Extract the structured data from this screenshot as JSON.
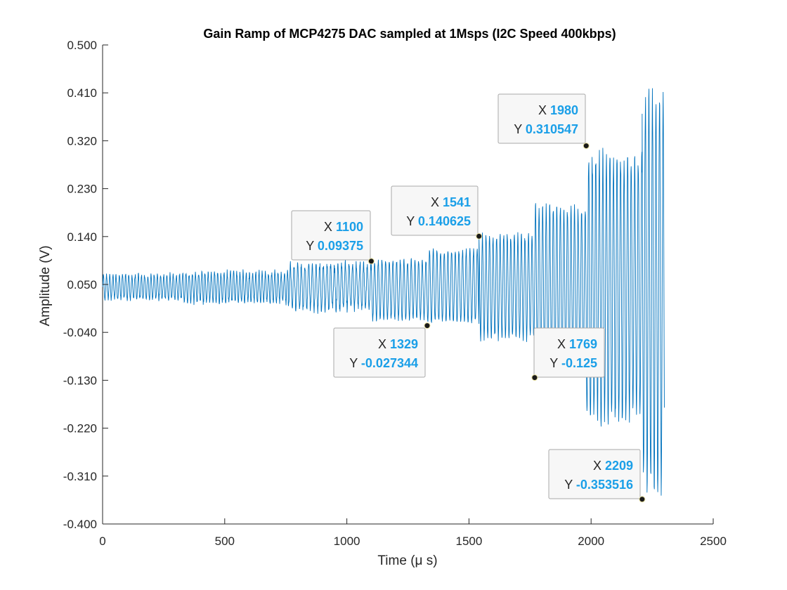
{
  "chart_data": {
    "type": "line",
    "title": "Gain Ramp of MCP4275 DAC sampled at 1Msps (I2C Speed 400kbps)",
    "xlabel": "Time (μ s)",
    "ylabel": "Amplitude (V)",
    "xlim": [
      0,
      2500
    ],
    "ylim": [
      -0.4,
      0.5
    ],
    "xticks": [
      "0",
      "500",
      "1000",
      "1500",
      "2000",
      "2500"
    ],
    "yticks": [
      "0.500",
      "0.410",
      "0.320",
      "0.230",
      "0.140",
      "0.050",
      "-0.040",
      "-0.130",
      "-0.220",
      "-0.310",
      "-0.400"
    ],
    "grid": false,
    "series": [
      {
        "color": "#0072bd",
        "description": "Oscillating signal with amplitude increasing in steps over time",
        "segments": [
          {
            "x_start": 0,
            "x_end": 330,
            "max": 0.07,
            "min": 0.02
          },
          {
            "x_start": 330,
            "x_end": 760,
            "max": 0.075,
            "min": 0.015
          },
          {
            "x_start": 760,
            "x_end": 1100,
            "max": 0.092,
            "min": 0.0
          },
          {
            "x_start": 1100,
            "x_end": 1329,
            "max": 0.1,
            "min": -0.02
          },
          {
            "x_start": 1329,
            "x_end": 1541,
            "max": 0.12,
            "min": -0.027
          },
          {
            "x_start": 1541,
            "x_end": 1769,
            "max": 0.15,
            "min": -0.06
          },
          {
            "x_start": 1769,
            "x_end": 1980,
            "max": 0.21,
            "min": -0.125
          },
          {
            "x_start": 1980,
            "x_end": 2209,
            "max": 0.31,
            "min": -0.22
          },
          {
            "x_start": 2209,
            "x_end": 2300,
            "max": 0.44,
            "min": -0.354
          }
        ]
      }
    ],
    "datatips": [
      {
        "x_label": "X",
        "y_label": "Y",
        "x": "1100",
        "y": "0.09375"
      },
      {
        "x_label": "X",
        "y_label": "Y",
        "x": "1329",
        "y": "-0.027344"
      },
      {
        "x_label": "X",
        "y_label": "Y",
        "x": "1541",
        "y": "0.140625"
      },
      {
        "x_label": "X",
        "y_label": "Y",
        "x": "1769",
        "y": "-0.125"
      },
      {
        "x_label": "X",
        "y_label": "Y",
        "x": "1980",
        "y": "0.310547"
      },
      {
        "x_label": "X",
        "y_label": "Y",
        "x": "2209",
        "y": "-0.353516"
      }
    ]
  }
}
